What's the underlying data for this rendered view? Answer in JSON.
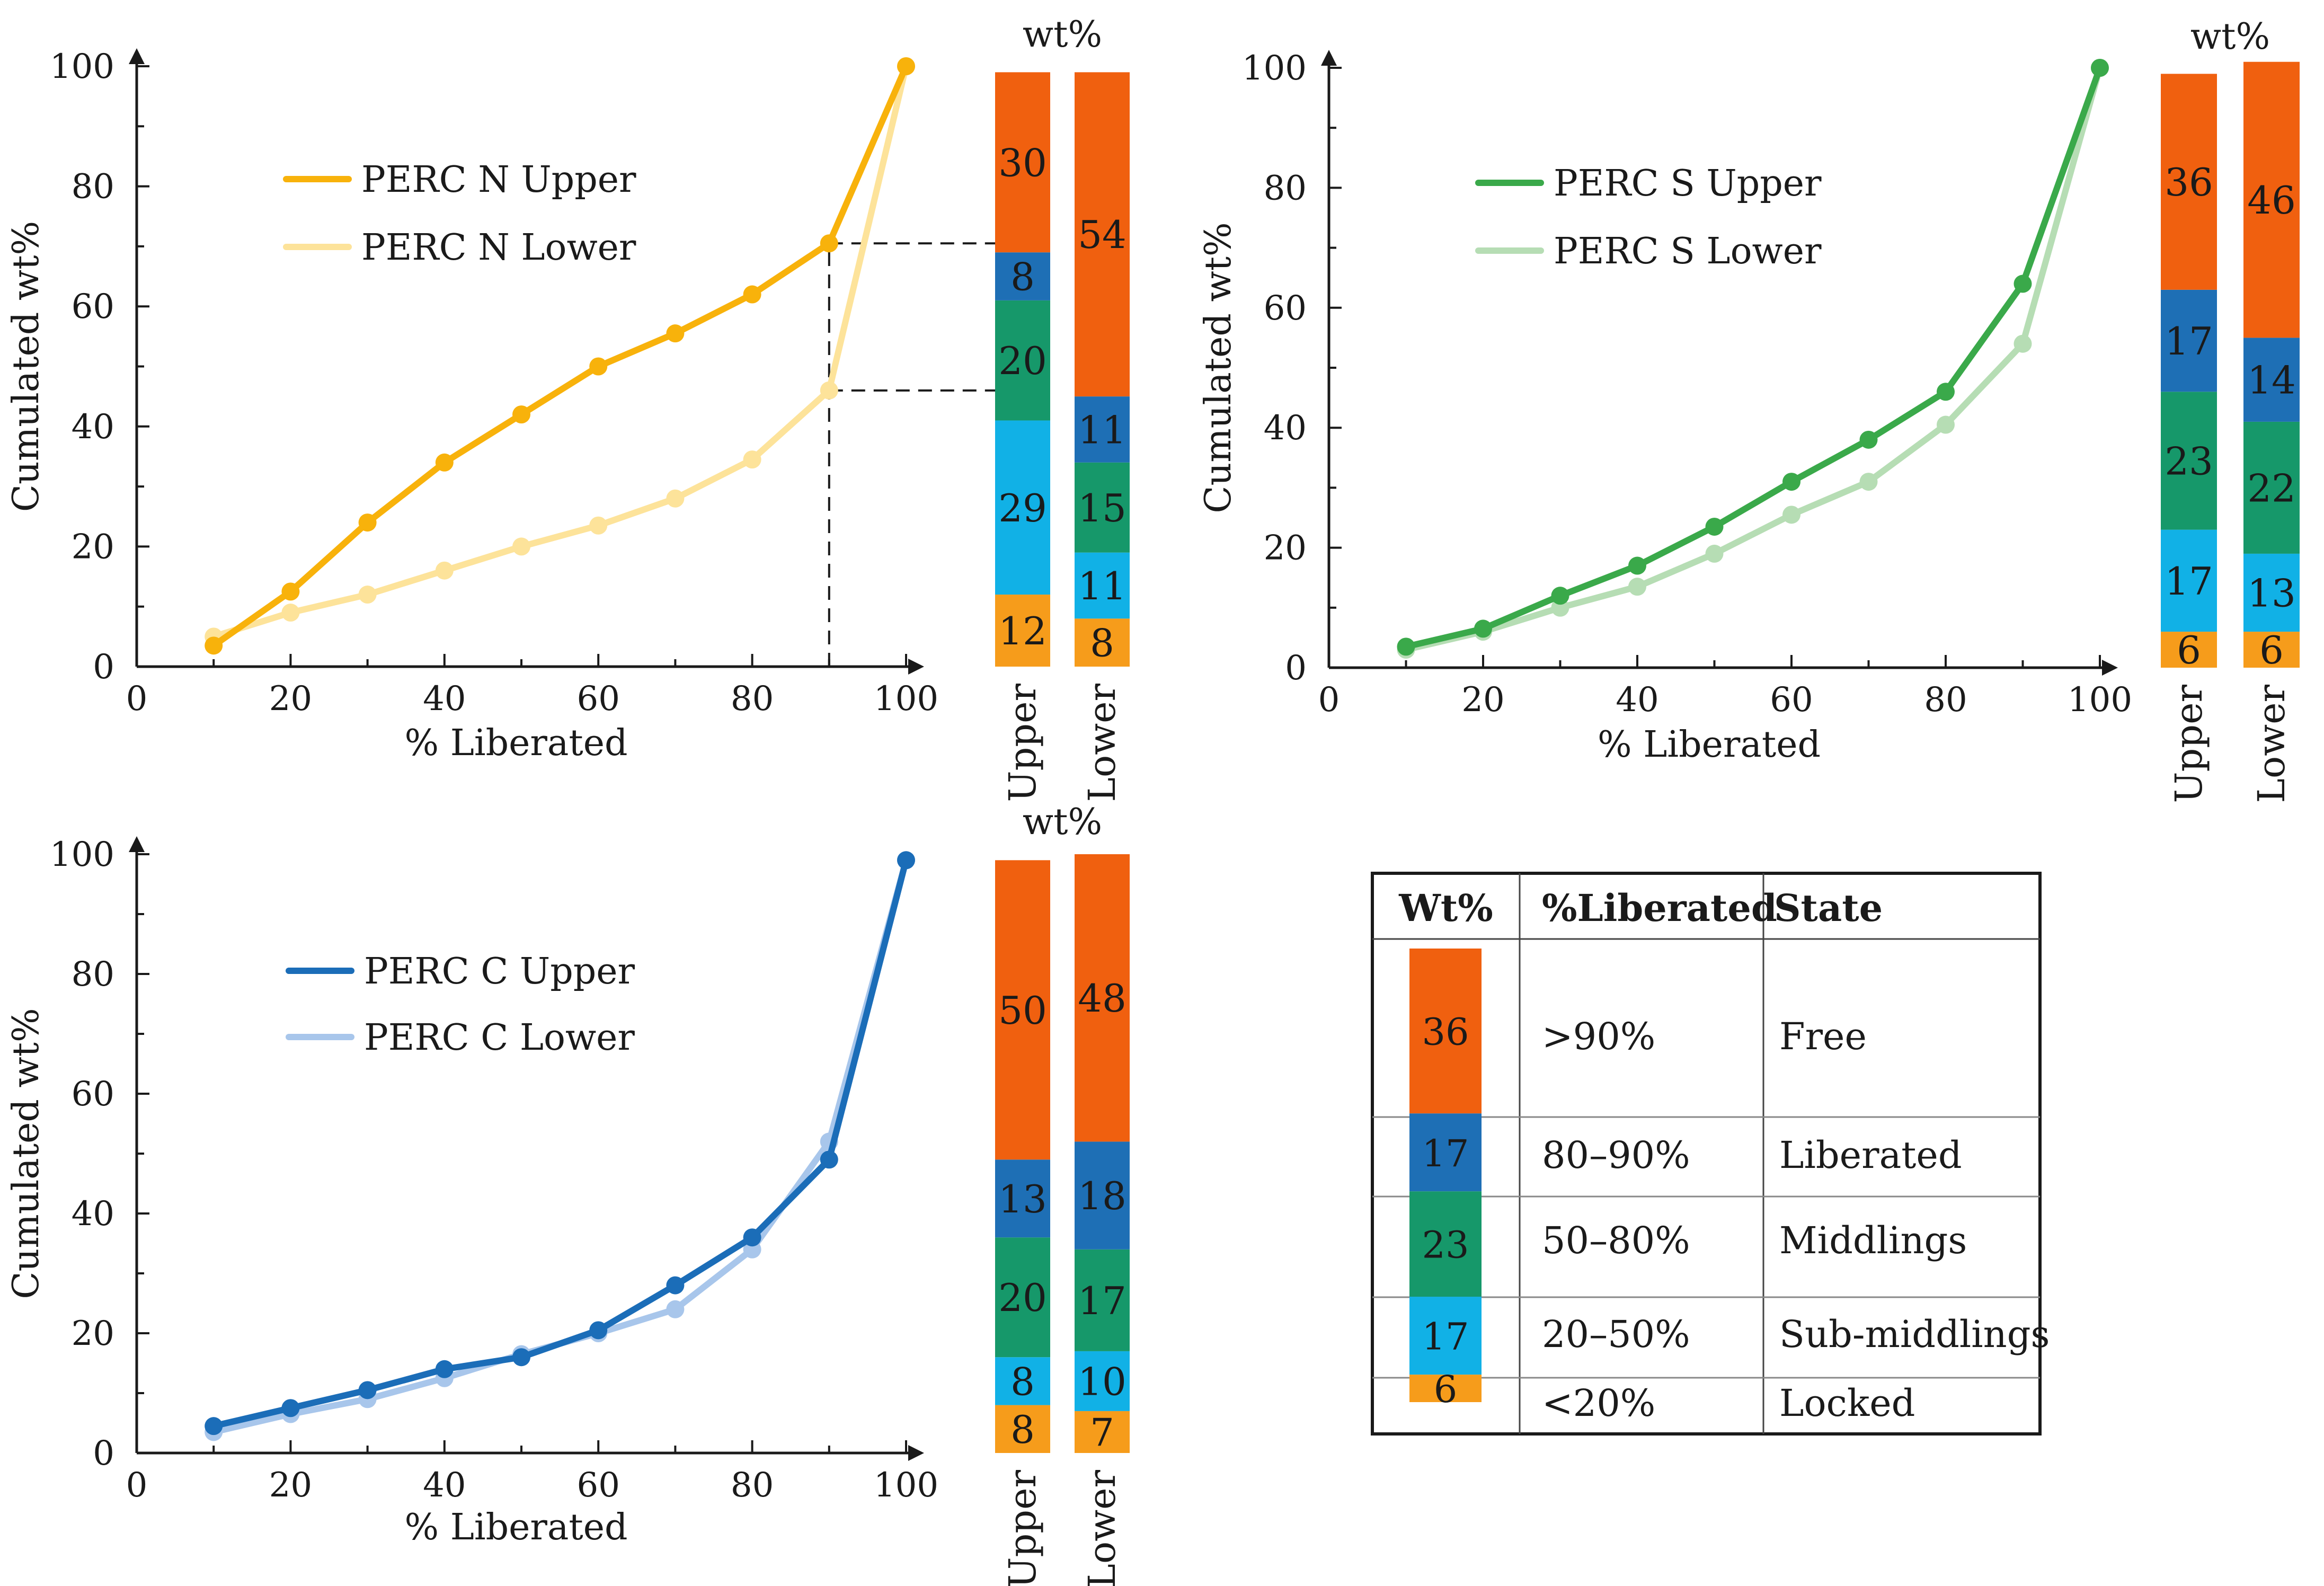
{
  "colors": {
    "free": "#f0600f",
    "liberated": "#1e6fb5",
    "middlings": "#16986a",
    "sub_middlings": "#11b1e6",
    "locked": "#f69c1b",
    "n_upper": "#f8b20b",
    "n_lower": "#fde39a",
    "s_upper": "#3aa94a",
    "s_lower": "#b6ddb4",
    "c_upper": "#1b6db8",
    "c_lower": "#a8c6eb",
    "axis": "#1a1a1a"
  },
  "chart_data": [
    {
      "id": "perc-n",
      "type": "line",
      "xlabel": "% Liberated",
      "ylabel": "Cumulated wt%",
      "xlim": [
        0,
        100
      ],
      "ylim": [
        0,
        100
      ],
      "x_ticks": [
        "0",
        "20",
        "40",
        "60",
        "80",
        "100"
      ],
      "y_ticks": [
        "0",
        "20",
        "40",
        "60",
        "80",
        "100"
      ],
      "x": [
        10,
        20,
        30,
        40,
        50,
        60,
        70,
        80,
        90,
        100
      ],
      "series": [
        {
          "name": "PERC N Upper",
          "color_key": "n_upper",
          "values": [
            3.5,
            12.5,
            24,
            34,
            42,
            50,
            55.5,
            62,
            70.5,
            100
          ]
        },
        {
          "name": "PERC N Lower",
          "color_key": "n_lower",
          "values": [
            5,
            9,
            12,
            16,
            20,
            23.5,
            28,
            34.5,
            46,
            100
          ]
        }
      ],
      "annotation": {
        "x": 90,
        "y_values": [
          70.5,
          46
        ]
      },
      "bars": {
        "title": "wt%",
        "columns": [
          {
            "label": "Upper",
            "segments": [
              12,
              29,
              20,
              8,
              30
            ],
            "labels": [
              "12",
              "29",
              "20",
              "8",
              "30"
            ]
          },
          {
            "label": "Lower",
            "segments": [
              8,
              11,
              15,
              11,
              54
            ],
            "labels": [
              "8",
              "11",
              "15",
              "11",
              "54"
            ]
          }
        ]
      }
    },
    {
      "id": "perc-s",
      "type": "line",
      "xlabel": "% Liberated",
      "ylabel": "Cumulated wt%",
      "xlim": [
        0,
        100
      ],
      "ylim": [
        0,
        100
      ],
      "x_ticks": [
        "0",
        "20",
        "40",
        "60",
        "80",
        "100"
      ],
      "y_ticks": [
        "0",
        "20",
        "40",
        "60",
        "80",
        "100"
      ],
      "x": [
        10,
        20,
        30,
        40,
        50,
        60,
        70,
        80,
        90,
        100
      ],
      "series": [
        {
          "name": "PERC S Upper",
          "color_key": "s_upper",
          "values": [
            3.5,
            6.5,
            12,
            17,
            23.5,
            31,
            38,
            46,
            64,
            100
          ]
        },
        {
          "name": "PERC S Lower",
          "color_key": "s_lower",
          "values": [
            3,
            6,
            10,
            13.5,
            19,
            25.5,
            31,
            40.5,
            54,
            100
          ]
        }
      ],
      "bars": {
        "title": "wt%",
        "columns": [
          {
            "label": "Upper",
            "segments": [
              6,
              17,
              23,
              17,
              36
            ],
            "labels": [
              "6",
              "17",
              "23",
              "17",
              "36"
            ]
          },
          {
            "label": "Lower",
            "segments": [
              6,
              13,
              22,
              14,
              46
            ],
            "labels": [
              "6",
              "13",
              "22",
              "14",
              "46"
            ]
          }
        ]
      }
    },
    {
      "id": "perc-c",
      "type": "line",
      "xlabel": "% Liberated",
      "ylabel": "Cumulated wt%",
      "xlim": [
        0,
        100
      ],
      "ylim": [
        0,
        100
      ],
      "x_ticks": [
        "0",
        "20",
        "40",
        "60",
        "80",
        "100"
      ],
      "y_ticks": [
        "0",
        "20",
        "40",
        "60",
        "80",
        "100"
      ],
      "x": [
        10,
        20,
        30,
        40,
        50,
        60,
        70,
        80,
        90,
        100
      ],
      "series": [
        {
          "name": "PERC C Upper",
          "color_key": "c_upper",
          "values": [
            4.5,
            7.5,
            10.5,
            14,
            16,
            20.5,
            28,
            36,
            49,
            99
          ]
        },
        {
          "name": "PERC C Lower",
          "color_key": "c_lower",
          "values": [
            3.5,
            6.5,
            9,
            12.5,
            16.5,
            20,
            24,
            34,
            52,
            99
          ]
        }
      ],
      "bars": {
        "title": "wt%",
        "columns": [
          {
            "label": "Upper",
            "segments": [
              8,
              8,
              20,
              13,
              50
            ],
            "labels": [
              "8",
              "8",
              "20",
              "13",
              "50"
            ]
          },
          {
            "label": "Lower",
            "segments": [
              7,
              10,
              17,
              18,
              48
            ],
            "labels": [
              "7",
              "10",
              "17",
              "18",
              "48"
            ]
          }
        ]
      }
    }
  ],
  "legend_table": {
    "headers": [
      "Wt%",
      "%Liberated",
      "State"
    ],
    "rows": [
      {
        "wt": 36,
        "wt_label": "36",
        "color_key": "free",
        "range": ">90%",
        "state": "Free"
      },
      {
        "wt": 17,
        "wt_label": "17",
        "color_key": "liberated",
        "range": "80–90%",
        "state": "Liberated"
      },
      {
        "wt": 23,
        "wt_label": "23",
        "color_key": "middlings",
        "range": "50–80%",
        "state": "Middlings"
      },
      {
        "wt": 17,
        "wt_label": "17",
        "color_key": "sub_middlings",
        "range": "20–50%",
        "state": "Sub-middlings"
      },
      {
        "wt": 6,
        "wt_label": "6",
        "color_key": "locked",
        "range": "<20%",
        "state": "Locked"
      }
    ]
  }
}
